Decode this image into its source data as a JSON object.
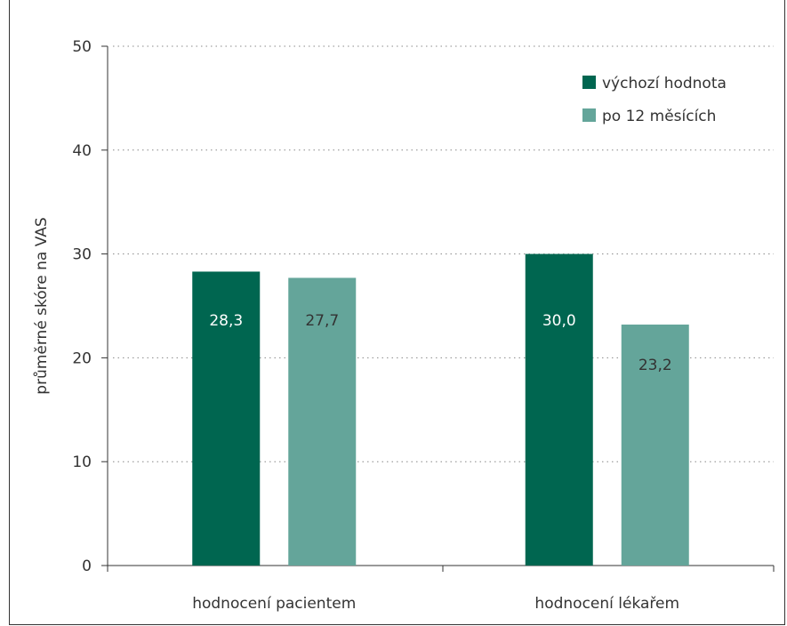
{
  "chart_data": {
    "type": "bar",
    "categories": [
      "hodnocení pacientem",
      "hodnocení lékařem"
    ],
    "series": [
      {
        "name": "výchozí hodnota",
        "values": [
          28.3,
          30.0
        ],
        "labels": [
          "28,3",
          "30,0"
        ],
        "color": "#006650"
      },
      {
        "name": "po 12 měsících",
        "values": [
          27.7,
          23.2
        ],
        "labels": [
          "27,7",
          "23,2"
        ],
        "color": "#64a59a"
      }
    ],
    "ylabel": "průměrné skóre na VAS",
    "xlabel": "",
    "ylim": [
      0,
      50
    ],
    "yticks": [
      0,
      10,
      20,
      30,
      40,
      50
    ],
    "grid": true,
    "legend_position": "top-right",
    "colors": {
      "axis": "#333333",
      "grid": "#888888",
      "inside_label": "#ffffff",
      "outside_label": "#333333"
    }
  }
}
